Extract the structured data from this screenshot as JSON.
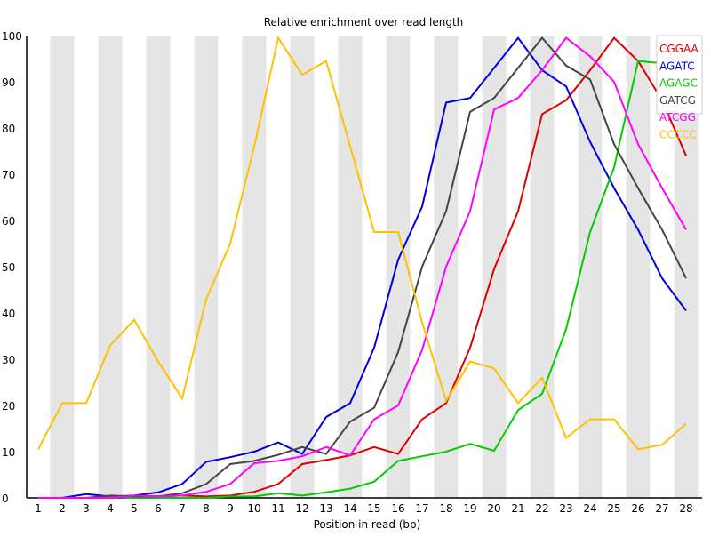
{
  "chart_data": {
    "type": "line",
    "title": "Relative enrichment over read length",
    "xlabel": "Position in read (bp)",
    "ylabel": "",
    "ylim": [
      0,
      100
    ],
    "yticks": [
      0,
      10,
      20,
      30,
      40,
      50,
      60,
      70,
      80,
      90,
      100
    ],
    "categories": [
      "1",
      "2",
      "3",
      "4",
      "5",
      "6",
      "7",
      "8",
      "9",
      "10",
      "11",
      "12",
      "13",
      "14",
      "15",
      "16",
      "17",
      "18",
      "19",
      "20",
      "21",
      "22",
      "23",
      "24",
      "25",
      "26",
      "27",
      "28"
    ],
    "background": "alternating grey vertical bands",
    "legend_position": "top-right",
    "series": [
      {
        "name": "CGGAA",
        "color": "#dd0000",
        "values": [
          0,
          0,
          0,
          0,
          0.5,
          0.3,
          0.5,
          0.3,
          0.5,
          1.3,
          3,
          7.3,
          8.2,
          9.2,
          11,
          9.5,
          17,
          20.5,
          32.5,
          49.5,
          62,
          83,
          86,
          92.5,
          99.5,
          94.5,
          86,
          74
        ]
      },
      {
        "name": "AGATC",
        "color": "#0000dd",
        "values": [
          0,
          0,
          0.8,
          0.3,
          0.5,
          1.2,
          3,
          7.8,
          8.8,
          10,
          12,
          9.5,
          17.5,
          20.5,
          32.5,
          51.5,
          63,
          85.5,
          86.5,
          93,
          99.5,
          92.5,
          89,
          77,
          67,
          58,
          47.5,
          40.5
        ]
      },
      {
        "name": "AGAGC",
        "color": "#00cc00",
        "values": [
          0,
          0,
          0,
          0.3,
          0,
          0,
          0,
          0,
          0.3,
          0.3,
          1,
          0.5,
          1.2,
          2,
          3.5,
          8,
          9,
          10,
          11.7,
          10.2,
          19,
          22.5,
          36.5,
          57.5,
          71.5,
          94.5,
          94,
          100
        ]
      },
      {
        "name": "GATCG",
        "color": "#444444",
        "values": [
          0,
          0,
          0,
          0.5,
          0.3,
          0.3,
          1,
          3,
          7.3,
          8,
          9.3,
          11,
          9.5,
          16.5,
          19.5,
          31.5,
          50,
          62,
          83.5,
          86.5,
          93,
          99.5,
          93.5,
          90.5,
          76.5,
          67,
          58,
          47.5
        ]
      },
      {
        "name": "ATCGG",
        "color": "#ff00ff",
        "values": [
          0,
          0,
          0,
          0,
          0.5,
          0.3,
          0.5,
          1.3,
          3,
          7.5,
          8,
          9,
          11,
          9.2,
          17,
          20,
          32,
          50,
          62,
          84,
          86.5,
          92.5,
          99.5,
          95.5,
          90,
          76.5,
          67,
          58
        ]
      },
      {
        "name": "CCCCC",
        "color": "#ffc000",
        "values": [
          10.5,
          20.5,
          20.5,
          33,
          38.5,
          29.5,
          21.5,
          43,
          55,
          76,
          99.5,
          91.5,
          94.5,
          76,
          57.5,
          57.5,
          38,
          21,
          29.5,
          28,
          20.5,
          26,
          13,
          17,
          17,
          10.5,
          11.5,
          16
        ]
      }
    ]
  }
}
